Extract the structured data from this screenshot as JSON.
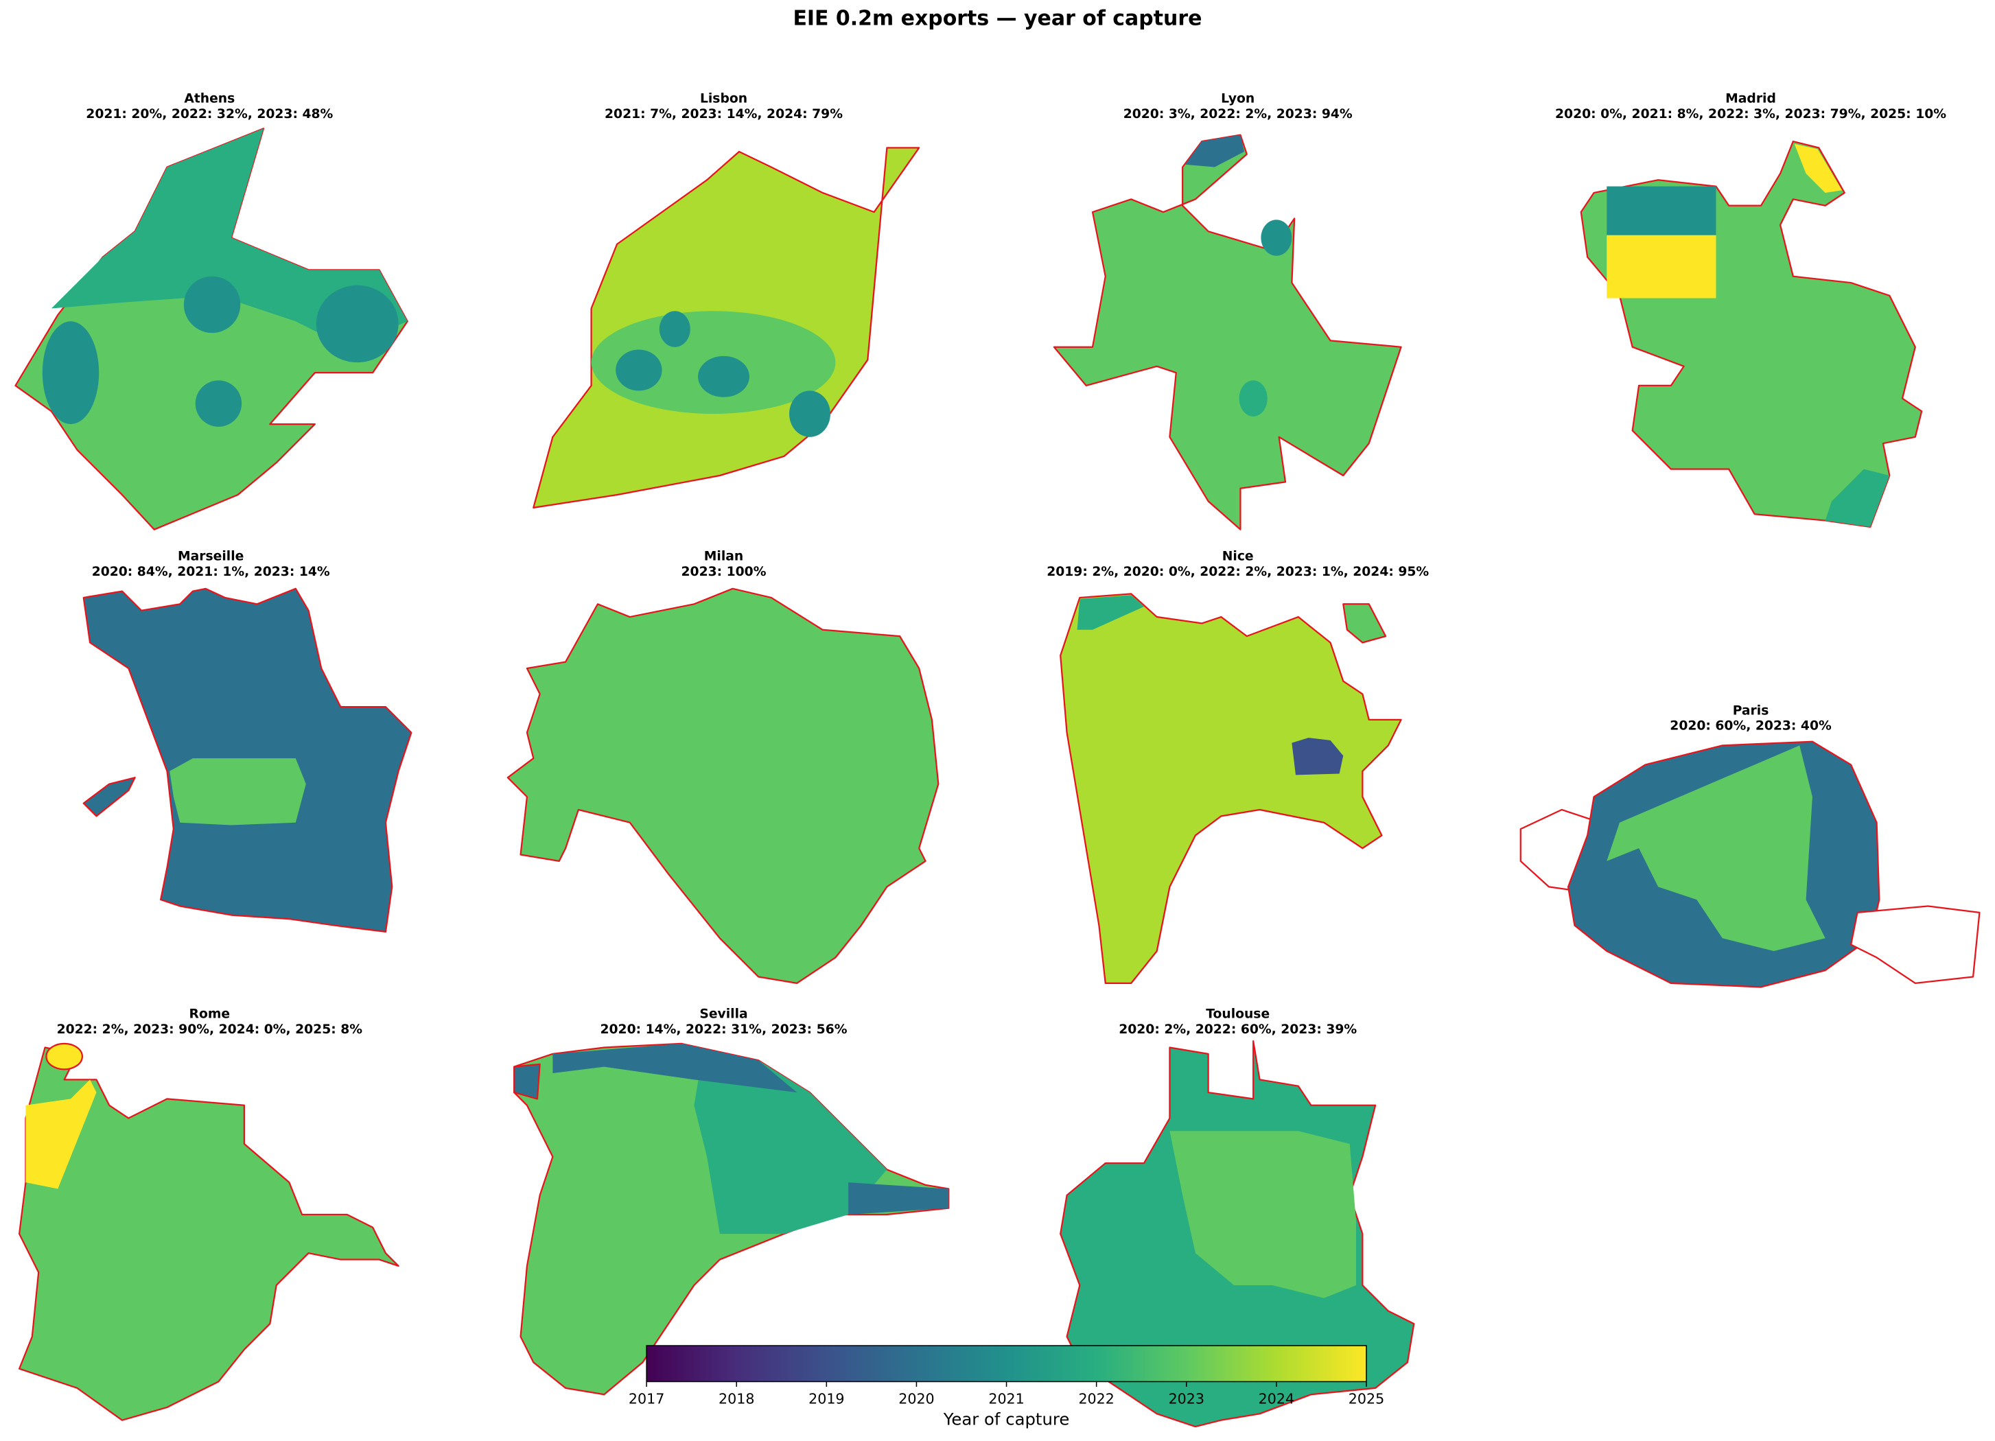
{
  "title": "EIE 0.2m exports — year of capture",
  "panels": [
    {
      "title": "Athens",
      "subtitle": "2021: 20%, 2022: 32%, 2023: 48%"
    },
    {
      "title": "Lisbon",
      "subtitle": "2021: 7%, 2023: 14%, 2024: 79%"
    },
    {
      "title": "Lyon",
      "subtitle": "2020: 3%, 2022: 2%, 2023: 94%"
    },
    {
      "title": "Madrid",
      "subtitle": "2020: 0%, 2021: 8%, 2022: 3%, 2023: 79%, 2025: 10%"
    },
    {
      "title": "Marseille",
      "subtitle": "2020: 84%, 2021: 1%, 2023: 14%"
    },
    {
      "title": "Milan",
      "subtitle": "2023: 100%"
    },
    {
      "title": "Nice",
      "subtitle": "2019: 2%, 2020: 0%, 2022: 2%, 2023: 1%, 2024: 95%"
    },
    {
      "title": "Paris",
      "subtitle": "2020: 60%, 2023: 40%"
    },
    {
      "title": "Rome",
      "subtitle": "2022: 2%, 2023: 90%, 2024: 0%, 2025: 8%"
    },
    {
      "title": "Sevilla",
      "subtitle": "2020: 14%, 2022: 31%, 2023: 56%"
    },
    {
      "title": "Toulouse",
      "subtitle": "2020: 2%, 2022: 60%, 2023: 39%"
    }
  ],
  "colorbar": {
    "label": "Year of capture",
    "range": [
      2017,
      2025
    ],
    "ticks": [
      2017,
      2018,
      2019,
      2020,
      2021,
      2022,
      2023,
      2024,
      2025
    ]
  }
}
